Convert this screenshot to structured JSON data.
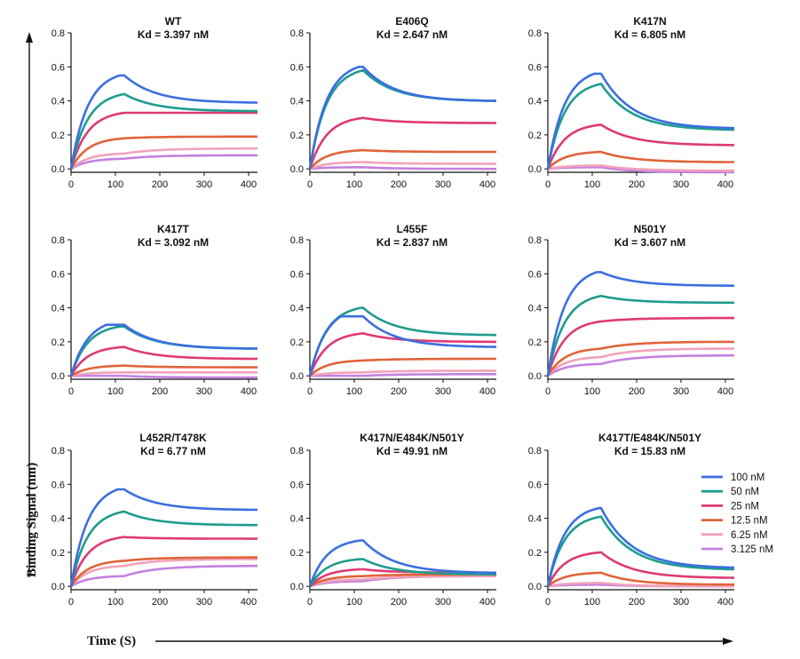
{
  "axis_titles": {
    "x": "Time (S)",
    "y": "Binding Signal (nm)"
  },
  "chart_data": {
    "type": "line",
    "layout": "3x3 grid of kinetic binding panels",
    "shared": {
      "x_ticks": [
        0,
        100,
        200,
        300,
        400
      ],
      "y_ticks": [
        0.0,
        0.2,
        0.4,
        0.6,
        0.8
      ],
      "y_tick_labels": [
        "0.0",
        "0.2",
        "0.4",
        "0.6",
        "0.8"
      ],
      "xlim": [
        0,
        420
      ],
      "ylim": [
        -0.02,
        0.8
      ],
      "association_end_s": 120,
      "grid": false,
      "legend_position": "right of bottom-right panel"
    },
    "series_legend": [
      {
        "name": "100 nM",
        "color": "#3b6fe0"
      },
      {
        "name": "50 nM",
        "color": "#1f9c8e"
      },
      {
        "name": "25 nM",
        "color": "#de3a73"
      },
      {
        "name": "12.5 nM",
        "color": "#e0643a"
      },
      {
        "name": "6.25 nM",
        "color": "#f2a2ba"
      },
      {
        "name": "3.125 nM",
        "color": "#c480e0"
      }
    ],
    "panels": [
      {
        "mutant": "WT",
        "kd": "Kd = 3.397 nM",
        "series": [
          {
            "name": "100 nM",
            "peak_time": 110,
            "peak": 0.55,
            "end": 0.39
          },
          {
            "name": "50 nM",
            "peak_time": 120,
            "peak": 0.44,
            "end": 0.34
          },
          {
            "name": "25 nM",
            "peak_time": 120,
            "peak": 0.33,
            "end": 0.33
          },
          {
            "name": "12.5 nM",
            "peak_time": 120,
            "peak": 0.18,
            "end": 0.19
          },
          {
            "name": "6.25 nM",
            "peak_time": 120,
            "peak": 0.09,
            "end": 0.12
          },
          {
            "name": "3.125 nM",
            "peak_time": 120,
            "peak": 0.06,
            "end": 0.08
          }
        ]
      },
      {
        "mutant": "E406Q",
        "kd": "Kd = 2.647 nM",
        "series": [
          {
            "name": "100 nM",
            "peak_time": 110,
            "peak": 0.6,
            "end": 0.4
          },
          {
            "name": "50 nM",
            "peak_time": 120,
            "peak": 0.58,
            "end": 0.4
          },
          {
            "name": "25 nM",
            "peak_time": 120,
            "peak": 0.3,
            "end": 0.27
          },
          {
            "name": "12.5 nM",
            "peak_time": 120,
            "peak": 0.11,
            "end": 0.1
          },
          {
            "name": "6.25 nM",
            "peak_time": 120,
            "peak": 0.04,
            "end": 0.03
          },
          {
            "name": "3.125 nM",
            "peak_time": 120,
            "peak": 0.01,
            "end": 0.0
          }
        ]
      },
      {
        "mutant": "K417N",
        "kd": "Kd = 6.805 nM",
        "series": [
          {
            "name": "100 nM",
            "peak_time": 105,
            "peak": 0.56,
            "end": 0.24
          },
          {
            "name": "50 nM",
            "peak_time": 120,
            "peak": 0.5,
            "end": 0.23
          },
          {
            "name": "25 nM",
            "peak_time": 120,
            "peak": 0.26,
            "end": 0.14
          },
          {
            "name": "12.5 nM",
            "peak_time": 120,
            "peak": 0.1,
            "end": 0.04
          },
          {
            "name": "6.25 nM",
            "peak_time": 120,
            "peak": 0.02,
            "end": -0.01
          },
          {
            "name": "3.125 nM",
            "peak_time": 120,
            "peak": 0.01,
            "end": -0.02
          }
        ]
      },
      {
        "mutant": "K417T",
        "kd": "Kd = 3.092 nM",
        "series": [
          {
            "name": "100 nM",
            "peak_time": 80,
            "peak": 0.3,
            "end": 0.16
          },
          {
            "name": "50 nM",
            "peak_time": 110,
            "peak": 0.29,
            "end": 0.16
          },
          {
            "name": "25 nM",
            "peak_time": 120,
            "peak": 0.17,
            "end": 0.1
          },
          {
            "name": "12.5 nM",
            "peak_time": 120,
            "peak": 0.06,
            "end": 0.05
          },
          {
            "name": "6.25 nM",
            "peak_time": 120,
            "peak": 0.02,
            "end": 0.02
          },
          {
            "name": "3.125 nM",
            "peak_time": 120,
            "peak": 0.0,
            "end": -0.01
          }
        ]
      },
      {
        "mutant": "L455F",
        "kd": "Kd = 2.837 nM",
        "series": [
          {
            "name": "100 nM",
            "peak_time": 70,
            "peak": 0.35,
            "end": 0.17
          },
          {
            "name": "50 nM",
            "peak_time": 115,
            "peak": 0.4,
            "end": 0.24
          },
          {
            "name": "25 nM",
            "peak_time": 120,
            "peak": 0.25,
            "end": 0.2
          },
          {
            "name": "12.5 nM",
            "peak_time": 120,
            "peak": 0.09,
            "end": 0.1
          },
          {
            "name": "6.25 nM",
            "peak_time": 120,
            "peak": 0.02,
            "end": 0.03
          },
          {
            "name": "3.125 nM",
            "peak_time": 120,
            "peak": 0.0,
            "end": 0.01
          }
        ]
      },
      {
        "mutant": "N501Y",
        "kd": "Kd = 3.607 nM",
        "series": [
          {
            "name": "100 nM",
            "peak_time": 110,
            "peak": 0.61,
            "end": 0.53
          },
          {
            "name": "50 nM",
            "peak_time": 120,
            "peak": 0.47,
            "end": 0.43
          },
          {
            "name": "25 nM",
            "peak_time": 120,
            "peak": 0.32,
            "end": 0.34
          },
          {
            "name": "12.5 nM",
            "peak_time": 120,
            "peak": 0.16,
            "end": 0.2
          },
          {
            "name": "6.25 nM",
            "peak_time": 120,
            "peak": 0.11,
            "end": 0.16
          },
          {
            "name": "3.125 nM",
            "peak_time": 120,
            "peak": 0.07,
            "end": 0.12
          }
        ]
      },
      {
        "mutant": "L452R/T478K",
        "kd": "Kd = 6.77 nM",
        "series": [
          {
            "name": "100 nM",
            "peak_time": 105,
            "peak": 0.57,
            "end": 0.45
          },
          {
            "name": "50 nM",
            "peak_time": 120,
            "peak": 0.44,
            "end": 0.36
          },
          {
            "name": "25 nM",
            "peak_time": 120,
            "peak": 0.29,
            "end": 0.28
          },
          {
            "name": "12.5 nM",
            "peak_time": 120,
            "peak": 0.15,
            "end": 0.17
          },
          {
            "name": "6.25 nM",
            "peak_time": 120,
            "peak": 0.12,
            "end": 0.16
          },
          {
            "name": "3.125 nM",
            "peak_time": 120,
            "peak": 0.06,
            "end": 0.12
          }
        ]
      },
      {
        "mutant": "K417N/E484K/N501Y",
        "kd": "Kd = 49.91 nM",
        "series": [
          {
            "name": "100 nM",
            "peak_time": 115,
            "peak": 0.27,
            "end": 0.08
          },
          {
            "name": "50 nM",
            "peak_time": 115,
            "peak": 0.16,
            "end": 0.07
          },
          {
            "name": "25 nM",
            "peak_time": 115,
            "peak": 0.1,
            "end": 0.08
          },
          {
            "name": "12.5 nM",
            "peak_time": 115,
            "peak": 0.06,
            "end": 0.07
          },
          {
            "name": "6.25 nM",
            "peak_time": 115,
            "peak": 0.04,
            "end": 0.06
          },
          {
            "name": "3.125 nM",
            "peak_time": 115,
            "peak": 0.03,
            "end": 0.06
          }
        ]
      },
      {
        "mutant": "K417T/E484K/N501Y",
        "kd": "Kd = 15.83 nM",
        "series": [
          {
            "name": "100 nM",
            "peak_time": 115,
            "peak": 0.46,
            "end": 0.11
          },
          {
            "name": "50 nM",
            "peak_time": 120,
            "peak": 0.41,
            "end": 0.1
          },
          {
            "name": "25 nM",
            "peak_time": 120,
            "peak": 0.2,
            "end": 0.05
          },
          {
            "name": "12.5 nM",
            "peak_time": 120,
            "peak": 0.08,
            "end": 0.01
          },
          {
            "name": "6.25 nM",
            "peak_time": 120,
            "peak": 0.02,
            "end": 0.0
          },
          {
            "name": "3.125 nM",
            "peak_time": 120,
            "peak": 0.01,
            "end": 0.0
          }
        ]
      }
    ]
  }
}
